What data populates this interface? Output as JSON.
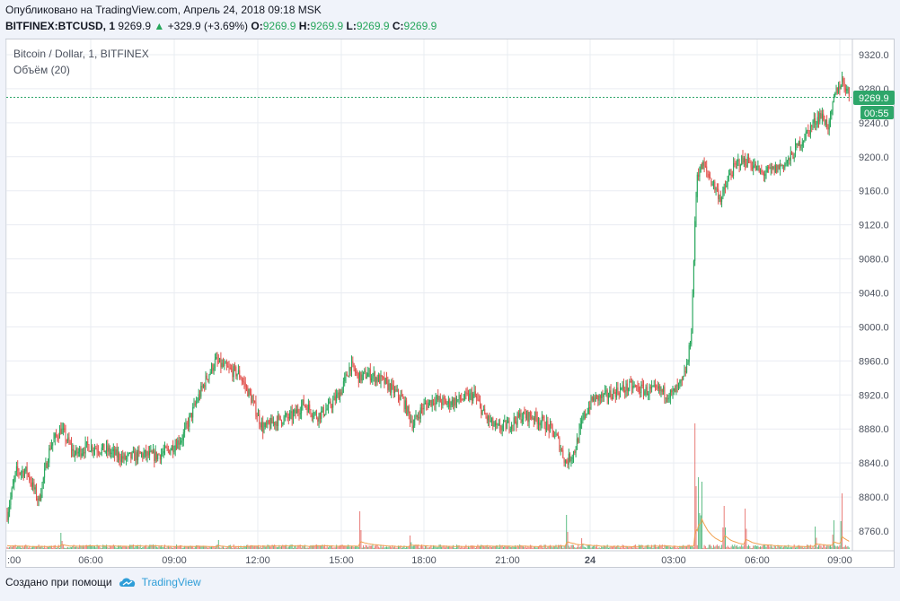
{
  "header": {
    "published": "Опубликовано на TradingView.com, Апрель 24, 2018 09:18 MSK",
    "symbol": "BITFINEX:BTCUSD, 1",
    "last": "9269.9",
    "change": "+329.9 (+3.69%)",
    "o_label": "O:",
    "o_value": "9269.9",
    "h_label": "H:",
    "h_value": "9269.9",
    "l_label": "L:",
    "l_value": "9269.9",
    "c_label": "C:",
    "c_value": "9269.9"
  },
  "legend": {
    "title": "Bitcoin / Dollar, 1, BITFINEX",
    "volume": "Объём (20)"
  },
  "price_tag": {
    "value": "9269.9",
    "countdown": "00:55"
  },
  "footer": {
    "created_with": "Создано при помощи",
    "brand": "TradingView"
  },
  "colors": {
    "up": "#26a65b",
    "down": "#e0504b",
    "grid": "#e9ecf2",
    "last_price": "#2ea66a",
    "volume_ma": "#f0a050"
  },
  "chart_data": {
    "type": "candlestick",
    "x_ticks": [
      ":00",
      "06:00",
      "09:00",
      "12:00",
      "15:00",
      "18:00",
      "21:00",
      "24",
      "03:00",
      "06:00",
      "09:00"
    ],
    "y_ticks": [
      "9320.0",
      "9280.0",
      "9240.0",
      "9200.0",
      "9160.0",
      "9120.0",
      "9080.0",
      "9040.0",
      "9000.0",
      "8960.0",
      "8920.0",
      "8880.0",
      "8840.0",
      "8800.0",
      "8760.0"
    ],
    "ylim": [
      8740,
      9330
    ],
    "last_price": 9269.9,
    "price_path": [
      [
        0,
        8780
      ],
      [
        10,
        8830
      ],
      [
        22,
        8830
      ],
      [
        35,
        8795
      ],
      [
        48,
        8860
      ],
      [
        60,
        8880
      ],
      [
        75,
        8850
      ],
      [
        90,
        8860
      ],
      [
        110,
        8855
      ],
      [
        130,
        8845
      ],
      [
        150,
        8850
      ],
      [
        165,
        8848
      ],
      [
        180,
        8855
      ],
      [
        195,
        8870
      ],
      [
        210,
        8910
      ],
      [
        222,
        8940
      ],
      [
        232,
        8960
      ],
      [
        245,
        8950
      ],
      [
        258,
        8945
      ],
      [
        270,
        8920
      ],
      [
        285,
        8880
      ],
      [
        300,
        8890
      ],
      [
        318,
        8895
      ],
      [
        330,
        8910
      ],
      [
        345,
        8895
      ],
      [
        358,
        8905
      ],
      [
        372,
        8925
      ],
      [
        382,
        8955
      ],
      [
        392,
        8940
      ],
      [
        402,
        8945
      ],
      [
        420,
        8935
      ],
      [
        440,
        8915
      ],
      [
        452,
        8885
      ],
      [
        462,
        8905
      ],
      [
        475,
        8915
      ],
      [
        490,
        8910
      ],
      [
        505,
        8915
      ],
      [
        520,
        8920
      ],
      [
        532,
        8895
      ],
      [
        545,
        8880
      ],
      [
        558,
        8885
      ],
      [
        572,
        8895
      ],
      [
        585,
        8895
      ],
      [
        600,
        8885
      ],
      [
        612,
        8870
      ],
      [
        622,
        8840
      ],
      [
        632,
        8855
      ],
      [
        642,
        8895
      ],
      [
        652,
        8915
      ],
      [
        665,
        8918
      ],
      [
        680,
        8925
      ],
      [
        695,
        8930
      ],
      [
        710,
        8925
      ],
      [
        725,
        8925
      ],
      [
        740,
        8920
      ],
      [
        752,
        8935
      ],
      [
        758,
        8960
      ],
      [
        762,
        9000
      ],
      [
        765,
        9100
      ],
      [
        768,
        9180
      ],
      [
        775,
        9190
      ],
      [
        785,
        9170
      ],
      [
        795,
        9150
      ],
      [
        805,
        9180
      ],
      [
        815,
        9195
      ],
      [
        825,
        9195
      ],
      [
        840,
        9180
      ],
      [
        855,
        9185
      ],
      [
        870,
        9195
      ],
      [
        882,
        9215
      ],
      [
        895,
        9235
      ],
      [
        905,
        9250
      ],
      [
        915,
        9235
      ],
      [
        922,
        9275
      ],
      [
        930,
        9290
      ],
      [
        938,
        9272
      ]
    ],
    "volume_spikes": [
      [
        60,
        18
      ],
      [
        235,
        10
      ],
      [
        393,
        42
      ],
      [
        449,
        15
      ],
      [
        623,
        38
      ],
      [
        640,
        12
      ],
      [
        766,
        140
      ],
      [
        770,
        80
      ],
      [
        773,
        75
      ],
      [
        798,
        48
      ],
      [
        822,
        45
      ],
      [
        900,
        25
      ],
      [
        920,
        32
      ],
      [
        929,
        62
      ]
    ]
  }
}
